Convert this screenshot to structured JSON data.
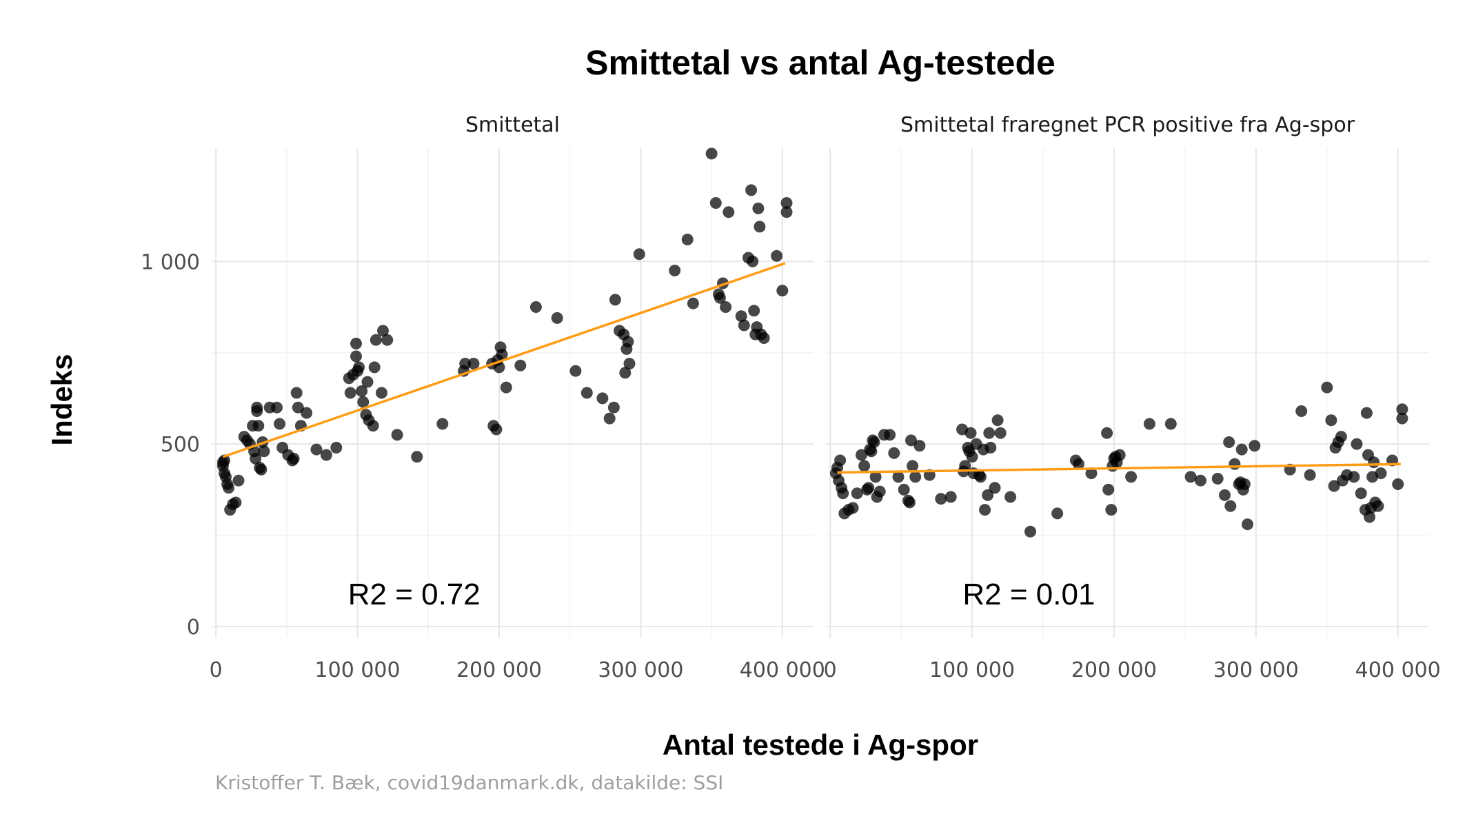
{
  "chart_data": {
    "type": "scatter",
    "title": "Smittetal vs antal Ag-testede",
    "xlabel": "Antal testede i Ag-spor",
    "ylabel": "Indeks",
    "caption": "Kristoffer T. Bæk, covid19danmark.dk, datakilde: SSI",
    "xlim": [
      -3000,
      422000
    ],
    "ylim": [
      -30,
      1310
    ],
    "x_ticks": [
      0,
      100000,
      200000,
      300000,
      400000
    ],
    "x_tick_labels": [
      "0",
      "100 000",
      "200 000",
      "300 000",
      "400 000"
    ],
    "y_ticks": [
      0,
      500,
      1000
    ],
    "y_tick_labels": [
      "0",
      "500",
      "1 000"
    ],
    "grid": true,
    "point_color": "#000000",
    "line_color": "#ff9c16",
    "panels": [
      {
        "strip_label": "Smittetal",
        "annotation": "R2 = 0.72",
        "fit_line": {
          "x": [
            5000,
            402000
          ],
          "y": [
            465,
            995
          ]
        },
        "points": [
          [
            5000,
            440
          ],
          [
            5000,
            450
          ],
          [
            6000,
            455
          ],
          [
            6000,
            420
          ],
          [
            7000,
            410
          ],
          [
            8000,
            390
          ],
          [
            9000,
            380
          ],
          [
            10000,
            320
          ],
          [
            12000,
            335
          ],
          [
            14000,
            340
          ],
          [
            16000,
            400
          ],
          [
            20000,
            520
          ],
          [
            22000,
            510
          ],
          [
            24000,
            500
          ],
          [
            26000,
            550
          ],
          [
            27000,
            480
          ],
          [
            28000,
            460
          ],
          [
            29000,
            600
          ],
          [
            29000,
            590
          ],
          [
            30000,
            550
          ],
          [
            31000,
            435
          ],
          [
            32000,
            430
          ],
          [
            33000,
            505
          ],
          [
            34000,
            480
          ],
          [
            38000,
            600
          ],
          [
            43000,
            600
          ],
          [
            45000,
            555
          ],
          [
            47000,
            490
          ],
          [
            51000,
            470
          ],
          [
            54000,
            455
          ],
          [
            55000,
            460
          ],
          [
            57000,
            640
          ],
          [
            58000,
            600
          ],
          [
            60000,
            550
          ],
          [
            64000,
            585
          ],
          [
            71000,
            485
          ],
          [
            78000,
            470
          ],
          [
            85000,
            490
          ],
          [
            94000,
            680
          ],
          [
            95000,
            640
          ],
          [
            97000,
            690
          ],
          [
            99000,
            775
          ],
          [
            99000,
            740
          ],
          [
            100000,
            700
          ],
          [
            101000,
            710
          ],
          [
            103000,
            645
          ],
          [
            104000,
            615
          ],
          [
            106000,
            580
          ],
          [
            107000,
            670
          ],
          [
            108000,
            565
          ],
          [
            111000,
            550
          ],
          [
            112000,
            710
          ],
          [
            113000,
            785
          ],
          [
            117000,
            640
          ],
          [
            118000,
            810
          ],
          [
            121000,
            785
          ],
          [
            128000,
            525
          ],
          [
            142000,
            465
          ],
          [
            160000,
            555
          ],
          [
            175000,
            700
          ],
          [
            176000,
            720
          ],
          [
            182000,
            720
          ],
          [
            195000,
            720
          ],
          [
            196000,
            550
          ],
          [
            198000,
            540
          ],
          [
            199000,
            730
          ],
          [
            200000,
            710
          ],
          [
            201000,
            765
          ],
          [
            202000,
            745
          ],
          [
            205000,
            655
          ],
          [
            215000,
            715
          ],
          [
            226000,
            875
          ],
          [
            241000,
            845
          ],
          [
            254000,
            700
          ],
          [
            262000,
            640
          ],
          [
            273000,
            625
          ],
          [
            278000,
            570
          ],
          [
            281000,
            600
          ],
          [
            282000,
            895
          ],
          [
            285000,
            810
          ],
          [
            288000,
            800
          ],
          [
            289000,
            695
          ],
          [
            290000,
            760
          ],
          [
            291000,
            780
          ],
          [
            292000,
            720
          ],
          [
            299000,
            1020
          ],
          [
            324000,
            975
          ],
          [
            333000,
            1060
          ],
          [
            337000,
            885
          ],
          [
            350000,
            1295
          ],
          [
            353000,
            1160
          ],
          [
            355000,
            910
          ],
          [
            356000,
            900
          ],
          [
            358000,
            940
          ],
          [
            360000,
            875
          ],
          [
            362000,
            1135
          ],
          [
            371000,
            850
          ],
          [
            373000,
            825
          ],
          [
            376000,
            1010
          ],
          [
            378000,
            1195
          ],
          [
            379000,
            1000
          ],
          [
            380000,
            865
          ],
          [
            381000,
            800
          ],
          [
            382000,
            820
          ],
          [
            383000,
            1145
          ],
          [
            384000,
            1095
          ],
          [
            385000,
            800
          ],
          [
            387000,
            790
          ],
          [
            396000,
            1015
          ],
          [
            400000,
            920
          ],
          [
            403000,
            1160
          ],
          [
            403000,
            1135
          ]
        ]
      },
      {
        "strip_label": "Smittetal fraregnet PCR positive fra Ag-spor",
        "annotation": "R2 = 0.01",
        "fit_line": {
          "x": [
            5000,
            402000
          ],
          "y": [
            422,
            445
          ]
        },
        "points": [
          [
            4000,
            420
          ],
          [
            5000,
            435
          ],
          [
            6000,
            400
          ],
          [
            7000,
            455
          ],
          [
            8000,
            380
          ],
          [
            9000,
            365
          ],
          [
            10000,
            310
          ],
          [
            13000,
            320
          ],
          [
            16000,
            325
          ],
          [
            19000,
            365
          ],
          [
            22000,
            470
          ],
          [
            24000,
            440
          ],
          [
            26000,
            375
          ],
          [
            27000,
            380
          ],
          [
            28000,
            485
          ],
          [
            29000,
            480
          ],
          [
            30000,
            510
          ],
          [
            31000,
            505
          ],
          [
            32000,
            410
          ],
          [
            33000,
            355
          ],
          [
            35000,
            370
          ],
          [
            38000,
            525
          ],
          [
            42000,
            525
          ],
          [
            45000,
            475
          ],
          [
            48000,
            410
          ],
          [
            52000,
            375
          ],
          [
            55000,
            345
          ],
          [
            56000,
            340
          ],
          [
            57000,
            510
          ],
          [
            58000,
            440
          ],
          [
            60000,
            410
          ],
          [
            63000,
            495
          ],
          [
            70000,
            415
          ],
          [
            78000,
            350
          ],
          [
            85000,
            355
          ],
          [
            93000,
            540
          ],
          [
            94000,
            425
          ],
          [
            95000,
            440
          ],
          [
            97000,
            490
          ],
          [
            98000,
            480
          ],
          [
            99000,
            530
          ],
          [
            100000,
            465
          ],
          [
            101000,
            420
          ],
          [
            103000,
            500
          ],
          [
            105000,
            415
          ],
          [
            106000,
            410
          ],
          [
            108000,
            485
          ],
          [
            109000,
            320
          ],
          [
            111000,
            360
          ],
          [
            112000,
            530
          ],
          [
            113000,
            490
          ],
          [
            116000,
            380
          ],
          [
            118000,
            565
          ],
          [
            120000,
            530
          ],
          [
            127000,
            355
          ],
          [
            141000,
            260
          ],
          [
            160000,
            310
          ],
          [
            173000,
            455
          ],
          [
            175000,
            445
          ],
          [
            184000,
            420
          ],
          [
            195000,
            530
          ],
          [
            196000,
            375
          ],
          [
            198000,
            320
          ],
          [
            199000,
            440
          ],
          [
            200000,
            460
          ],
          [
            201000,
            465
          ],
          [
            202000,
            450
          ],
          [
            204000,
            470
          ],
          [
            212000,
            410
          ],
          [
            225000,
            555
          ],
          [
            240000,
            555
          ],
          [
            254000,
            410
          ],
          [
            261000,
            400
          ],
          [
            273000,
            405
          ],
          [
            278000,
            360
          ],
          [
            281000,
            505
          ],
          [
            282000,
            330
          ],
          [
            285000,
            445
          ],
          [
            288000,
            390
          ],
          [
            289000,
            395
          ],
          [
            290000,
            485
          ],
          [
            291000,
            375
          ],
          [
            292000,
            390
          ],
          [
            294000,
            280
          ],
          [
            299000,
            495
          ],
          [
            324000,
            430
          ],
          [
            332000,
            590
          ],
          [
            338000,
            415
          ],
          [
            350000,
            655
          ],
          [
            353000,
            565
          ],
          [
            355000,
            385
          ],
          [
            356000,
            490
          ],
          [
            358000,
            505
          ],
          [
            360000,
            520
          ],
          [
            361000,
            400
          ],
          [
            364000,
            415
          ],
          [
            369000,
            410
          ],
          [
            371000,
            500
          ],
          [
            374000,
            365
          ],
          [
            377000,
            320
          ],
          [
            378000,
            585
          ],
          [
            379000,
            470
          ],
          [
            380000,
            300
          ],
          [
            381000,
            325
          ],
          [
            382000,
            410
          ],
          [
            383000,
            450
          ],
          [
            384000,
            340
          ],
          [
            386000,
            330
          ],
          [
            388000,
            420
          ],
          [
            396000,
            455
          ],
          [
            400000,
            390
          ],
          [
            403000,
            595
          ],
          [
            403000,
            570
          ]
        ]
      }
    ]
  }
}
